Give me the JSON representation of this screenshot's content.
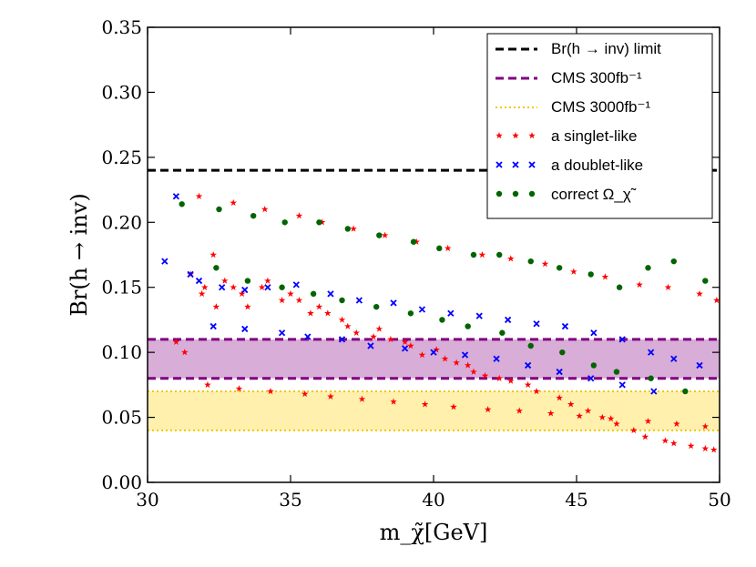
{
  "chart_data": {
    "type": "scatter",
    "title": "",
    "xlabel": "m_χ̃[GeV]",
    "ylabel": "Br(h → inv)",
    "xlim": [
      30,
      50
    ],
    "ylim": [
      0.0,
      0.35
    ],
    "x_ticks": [
      "30",
      "35",
      "40",
      "45",
      "50"
    ],
    "y_ticks": [
      "0.00",
      "0.05",
      "0.10",
      "0.15",
      "0.20",
      "0.25",
      "0.30",
      "0.35"
    ],
    "grid": false,
    "legend_position": "top-right",
    "reference_lines": [
      {
        "name": "Br(h → inv) limit",
        "y": 0.24,
        "color": "#000000",
        "style": "dashed"
      }
    ],
    "bands": [
      {
        "name": "CMS 300fb⁻¹",
        "y_low": 0.08,
        "y_high": 0.11,
        "edge_color": "#800080",
        "fill_color": "#c88ac8",
        "style": "dashed"
      },
      {
        "name": "CMS 3000fb⁻¹",
        "y_low": 0.04,
        "y_high": 0.07,
        "edge_color": "#f0c800",
        "fill_color": "#ffe98a",
        "style": "dotted"
      }
    ],
    "legend": [
      {
        "label": "Br(h → inv) limit",
        "kind": "line",
        "color": "#000000",
        "style": "dashed"
      },
      {
        "label": "CMS 300fb⁻¹",
        "kind": "line",
        "color": "#800080",
        "style": "dashed"
      },
      {
        "label": "CMS 3000fb⁻¹",
        "kind": "line",
        "color": "#f0c800",
        "style": "dotted"
      },
      {
        "label": "a singlet-like",
        "kind": "marker",
        "color": "#ff0000",
        "marker": "star"
      },
      {
        "label": "a doublet-like",
        "kind": "marker",
        "color": "#0000ff",
        "marker": "x"
      },
      {
        "label": "correct Ω_χ̃",
        "kind": "marker",
        "color": "#006400",
        "marker": "circle"
      }
    ],
    "series": [
      {
        "name": "a singlet-like",
        "color": "#ff0000",
        "marker": "star",
        "x": [
          31.0,
          31.3,
          31.5,
          31.9,
          32.0,
          32.3,
          32.4,
          32.7,
          33.0,
          33.3,
          33.5,
          34.0,
          34.2,
          34.7,
          35.0,
          35.3,
          35.7,
          36.0,
          36.3,
          36.8,
          37.0,
          37.3,
          37.9,
          38.1,
          38.5,
          39.0,
          39.2,
          39.6,
          40.1,
          40.4,
          40.8,
          41.2,
          41.4,
          41.8,
          42.3,
          42.7,
          43.3,
          43.6,
          44.4,
          44.8,
          45.4,
          45.9,
          46.4,
          47.0,
          47.4,
          48.1,
          48.4,
          49.0,
          49.5,
          49.8,
          31.8,
          33.0,
          34.1,
          35.3,
          36.1,
          37.2,
          38.3,
          39.4,
          40.5,
          41.7,
          42.7,
          43.9,
          44.9,
          46.0,
          47.2,
          48.2,
          49.3,
          49.9,
          32.1,
          33.2,
          34.3,
          35.5,
          36.4,
          37.5,
          38.6,
          39.7,
          40.7,
          41.9,
          43.0,
          44.1,
          45.1,
          46.2,
          47.5,
          48.5,
          49.5
        ],
        "y": [
          0.108,
          0.1,
          0.16,
          0.145,
          0.15,
          0.175,
          0.135,
          0.155,
          0.15,
          0.145,
          0.135,
          0.15,
          0.155,
          0.14,
          0.145,
          0.14,
          0.13,
          0.135,
          0.13,
          0.125,
          0.12,
          0.115,
          0.112,
          0.118,
          0.11,
          0.108,
          0.105,
          0.098,
          0.102,
          0.095,
          0.092,
          0.09,
          0.085,
          0.082,
          0.08,
          0.078,
          0.075,
          0.07,
          0.065,
          0.06,
          0.055,
          0.05,
          0.045,
          0.04,
          0.035,
          0.032,
          0.03,
          0.028,
          0.026,
          0.025,
          0.22,
          0.215,
          0.21,
          0.205,
          0.2,
          0.195,
          0.19,
          0.185,
          0.18,
          0.175,
          0.172,
          0.168,
          0.162,
          0.158,
          0.152,
          0.15,
          0.145,
          0.14,
          0.075,
          0.072,
          0.07,
          0.068,
          0.066,
          0.064,
          0.062,
          0.06,
          0.058,
          0.056,
          0.055,
          0.053,
          0.051,
          0.049,
          0.047,
          0.045,
          0.043
        ]
      },
      {
        "name": "a doublet-like",
        "color": "#0000ff",
        "marker": "x",
        "x": [
          30.6,
          31.0,
          31.5,
          31.8,
          32.6,
          33.4,
          34.2,
          35.2,
          36.4,
          37.4,
          38.6,
          39.6,
          40.6,
          41.6,
          42.6,
          43.6,
          44.6,
          45.6,
          46.6,
          47.6,
          48.4,
          49.3,
          32.3,
          33.4,
          34.7,
          35.6,
          36.8,
          37.8,
          39.0,
          40.0,
          41.1,
          42.2,
          43.3,
          44.4,
          45.5,
          46.6,
          47.7
        ],
        "y": [
          0.17,
          0.22,
          0.16,
          0.155,
          0.15,
          0.148,
          0.15,
          0.152,
          0.145,
          0.14,
          0.138,
          0.133,
          0.13,
          0.128,
          0.125,
          0.122,
          0.12,
          0.115,
          0.11,
          0.1,
          0.095,
          0.09,
          0.12,
          0.118,
          0.115,
          0.112,
          0.11,
          0.105,
          0.103,
          0.1,
          0.098,
          0.095,
          0.09,
          0.085,
          0.08,
          0.075,
          0.07
        ]
      },
      {
        "name": "correct Ω_χ̃",
        "color": "#006400",
        "marker": "circle",
        "x": [
          31.2,
          32.5,
          33.7,
          34.8,
          36.0,
          37.0,
          38.1,
          39.3,
          40.2,
          41.4,
          42.3,
          43.4,
          44.4,
          45.5,
          46.5,
          47.5,
          48.4,
          49.5,
          32.4,
          33.5,
          34.7,
          35.8,
          36.8,
          38.0,
          39.2,
          40.3,
          41.2,
          42.4,
          43.4,
          44.5,
          45.6,
          46.4,
          47.6,
          48.8
        ],
        "y": [
          0.214,
          0.21,
          0.205,
          0.2,
          0.2,
          0.195,
          0.19,
          0.185,
          0.18,
          0.175,
          0.175,
          0.17,
          0.165,
          0.16,
          0.15,
          0.165,
          0.17,
          0.155,
          0.165,
          0.155,
          0.15,
          0.145,
          0.14,
          0.135,
          0.13,
          0.125,
          0.12,
          0.115,
          0.105,
          0.1,
          0.09,
          0.085,
          0.08,
          0.07
        ]
      }
    ]
  }
}
